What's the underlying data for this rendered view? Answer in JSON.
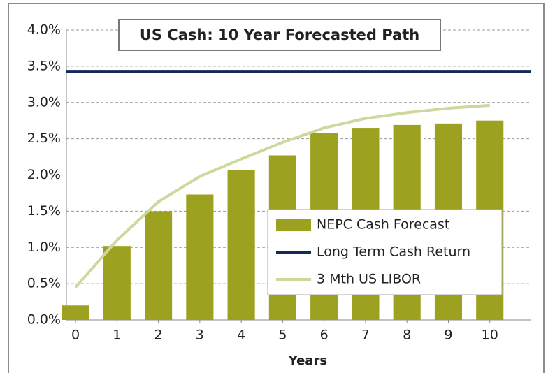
{
  "chart_data": {
    "type": "bar",
    "title": "US Cash: 10 Year Forecasted Path",
    "x_label": "Years",
    "x": [
      0,
      1,
      2,
      3,
      4,
      5,
      6,
      7,
      8,
      9,
      10
    ],
    "xlim": [
      -0.22,
      11
    ],
    "xticks": [
      0,
      1,
      2,
      3,
      4,
      5,
      6,
      7,
      8,
      9,
      10
    ],
    "ylim": [
      0,
      4
    ],
    "yticks": [
      {
        "value": 0,
        "label": "0.0%"
      },
      {
        "value": 0.5,
        "label": "0.5%"
      },
      {
        "value": 1,
        "label": "1.0%"
      },
      {
        "value": 1.5,
        "label": "1.5%"
      },
      {
        "value": 2,
        "label": "2.0%"
      },
      {
        "value": 2.5,
        "label": "2.5%"
      },
      {
        "value": 3,
        "label": "3.0%"
      },
      {
        "value": 3.5,
        "label": "3.5%"
      },
      {
        "value": 4,
        "label": "4.0%"
      }
    ],
    "grid": true,
    "series": [
      {
        "name": "NEPC Cash Forecast",
        "type": "bar",
        "color": "#9ca11f",
        "values": [
          0.2,
          1.02,
          1.5,
          1.73,
          2.07,
          2.27,
          2.58,
          2.65,
          2.69,
          2.71,
          2.75
        ]
      },
      {
        "name": "Long Term Cash Return",
        "type": "hline",
        "color": "#14285a",
        "value": 3.43
      },
      {
        "name": "3 Mth US LIBOR",
        "type": "line",
        "color": "#cdd99c",
        "values": [
          0.45,
          1.1,
          1.63,
          1.98,
          2.22,
          2.45,
          2.65,
          2.78,
          2.86,
          2.92,
          2.96
        ]
      }
    ]
  }
}
